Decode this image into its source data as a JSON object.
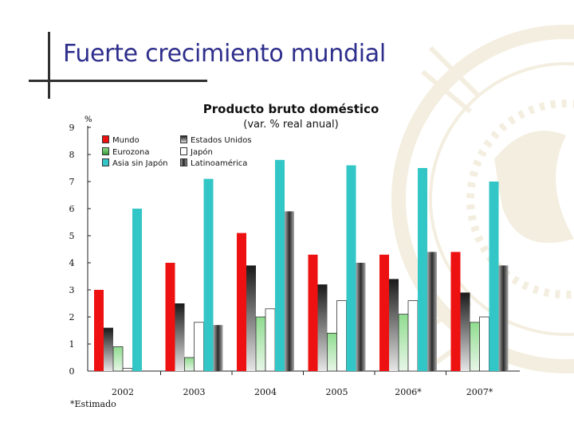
{
  "slide": {
    "title": "Fuerte crecimiento mundial",
    "footnote": "*Estimado"
  },
  "colors": {
    "title": "#2e2e8c",
    "mundo": "#ee1111",
    "estados_unidos": "#444444",
    "eurozona": "#66bb66",
    "japon": "#ffffff",
    "asia_sin_japon": "#33c6c6",
    "latinoamerica": "#555555"
  },
  "chart_data": {
    "type": "bar",
    "title": "Producto bruto doméstico",
    "subtitle": "(var. % real anual)",
    "ylabel": "%",
    "xlabel": "",
    "ylim": [
      0,
      9
    ],
    "yticks": [
      0,
      1,
      2,
      3,
      4,
      5,
      6,
      7,
      8,
      9
    ],
    "categories": [
      "2002",
      "2003",
      "2004",
      "2005",
      "2006*",
      "2007*"
    ],
    "series": [
      {
        "name": "Mundo",
        "key": "mundo",
        "values": [
          3.0,
          4.0,
          5.1,
          4.3,
          4.3,
          4.4
        ]
      },
      {
        "name": "Estados Unidos",
        "key": "estados_unidos",
        "values": [
          1.6,
          2.5,
          3.9,
          3.2,
          3.4,
          2.9
        ]
      },
      {
        "name": "Eurozona",
        "key": "eurozona",
        "values": [
          0.9,
          0.5,
          2.0,
          1.4,
          2.1,
          1.8
        ]
      },
      {
        "name": "Japón",
        "key": "japon",
        "values": [
          0.1,
          1.8,
          2.3,
          2.6,
          2.6,
          2.0
        ]
      },
      {
        "name": "Asia sin Japón",
        "key": "asia_sin_japon",
        "values": [
          6.0,
          7.1,
          7.8,
          7.6,
          7.5,
          7.0
        ]
      },
      {
        "name": "Latinoamérica",
        "key": "latinoamerica",
        "values": [
          -0.1,
          1.7,
          5.9,
          4.0,
          4.4,
          3.9
        ]
      }
    ]
  }
}
